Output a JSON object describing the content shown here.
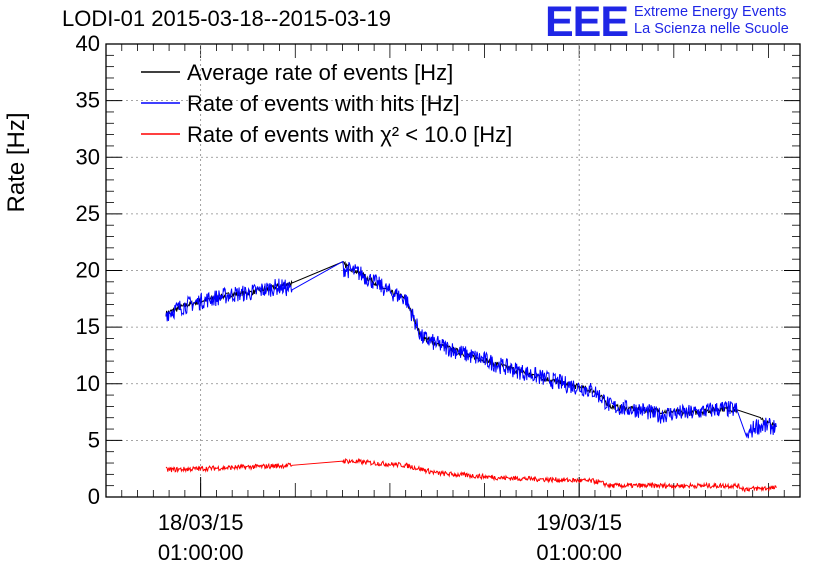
{
  "header": {
    "title": "LODI-01 2015-03-18--2015-03-19",
    "logo_mark": "EEE",
    "logo_line1": "Extreme Energy Events",
    "logo_line2": "La Scienza nelle Scuole"
  },
  "chart_data": {
    "type": "line",
    "title": "LODI-01 2015-03-18--2015-03-19",
    "ylabel": "Rate [Hz]",
    "xlabel": "",
    "ylim": [
      0,
      40
    ],
    "y_ticks": [
      "0",
      "5",
      "10",
      "15",
      "20",
      "25",
      "30",
      "35",
      "40"
    ],
    "x_ticks": [
      {
        "date": "18/03/15",
        "time": "01:00:00",
        "x_hours": 1.0
      },
      {
        "date": "19/03/15",
        "time": "01:00:00",
        "x_hours": 25.0
      }
    ],
    "xlim_hours": [
      -5.0,
      39.0
    ],
    "grid": true,
    "legend_position": "top-left",
    "series": [
      {
        "name": "Average rate of events [Hz]",
        "color": "#000000",
        "x_hours": [
          -1.2,
          0.0,
          1.0,
          2.0,
          3.0,
          4.0,
          5.0,
          6.0,
          6.8,
          10.0,
          11.0,
          12.0,
          13.0,
          14.0,
          15.0,
          16.0,
          17.0,
          18.0,
          19.0,
          20.0,
          21.0,
          22.0,
          23.0,
          24.0,
          25.0,
          26.0,
          27.0,
          28.0,
          29.0,
          30.0,
          31.0,
          32.0,
          33.0,
          34.0,
          35.0,
          36.5,
          37.5
        ],
        "values": [
          16.2,
          16.9,
          17.3,
          17.6,
          17.9,
          18.0,
          18.3,
          18.6,
          18.9,
          20.6,
          19.8,
          19.0,
          18.1,
          17.5,
          14.1,
          13.5,
          13.0,
          12.5,
          12.1,
          11.6,
          11.2,
          10.8,
          10.4,
          10.0,
          9.7,
          9.3,
          8.0,
          7.8,
          7.7,
          7.6,
          7.5,
          7.4,
          7.6,
          7.8,
          7.7,
          6.8,
          6.2
        ]
      },
      {
        "name": "Rate of events with hits [Hz]",
        "color": "#0000ff",
        "x_hours": [
          -1.2,
          0.0,
          1.0,
          2.0,
          3.0,
          4.0,
          5.0,
          6.0,
          6.8,
          10.0,
          11.0,
          12.0,
          13.0,
          14.0,
          15.0,
          16.0,
          17.0,
          18.0,
          19.0,
          20.0,
          21.0,
          22.0,
          23.0,
          24.0,
          25.0,
          26.0,
          27.0,
          28.0,
          29.0,
          30.0,
          31.0,
          32.0,
          33.0,
          34.0,
          35.0,
          35.6,
          36.2,
          37.5
        ],
        "values": [
          16.2,
          16.9,
          17.3,
          17.6,
          17.9,
          18.0,
          18.3,
          18.6,
          18.3,
          20.2,
          19.8,
          19.0,
          18.1,
          17.5,
          14.1,
          13.5,
          13.0,
          12.5,
          12.1,
          11.6,
          11.2,
          10.8,
          10.4,
          10.0,
          9.7,
          9.3,
          8.0,
          7.8,
          7.7,
          7.2,
          7.4,
          7.4,
          7.6,
          7.8,
          7.7,
          5.3,
          6.3,
          6.2
        ]
      },
      {
        "name": "Rate of events with χ² < 10.0 [Hz]",
        "color": "#ff0000",
        "x_hours": [
          -1.2,
          1.0,
          3.0,
          5.0,
          6.8,
          10.0,
          12.0,
          14.0,
          16.0,
          18.0,
          20.0,
          22.0,
          24.0,
          26.0,
          27.0,
          30.0,
          33.0,
          35.0,
          35.5,
          37.5
        ],
        "values": [
          2.4,
          2.5,
          2.6,
          2.7,
          2.8,
          3.2,
          3.0,
          2.8,
          2.1,
          1.9,
          1.7,
          1.6,
          1.5,
          1.4,
          1.0,
          1.0,
          1.0,
          1.0,
          0.7,
          0.8
        ]
      }
    ]
  }
}
